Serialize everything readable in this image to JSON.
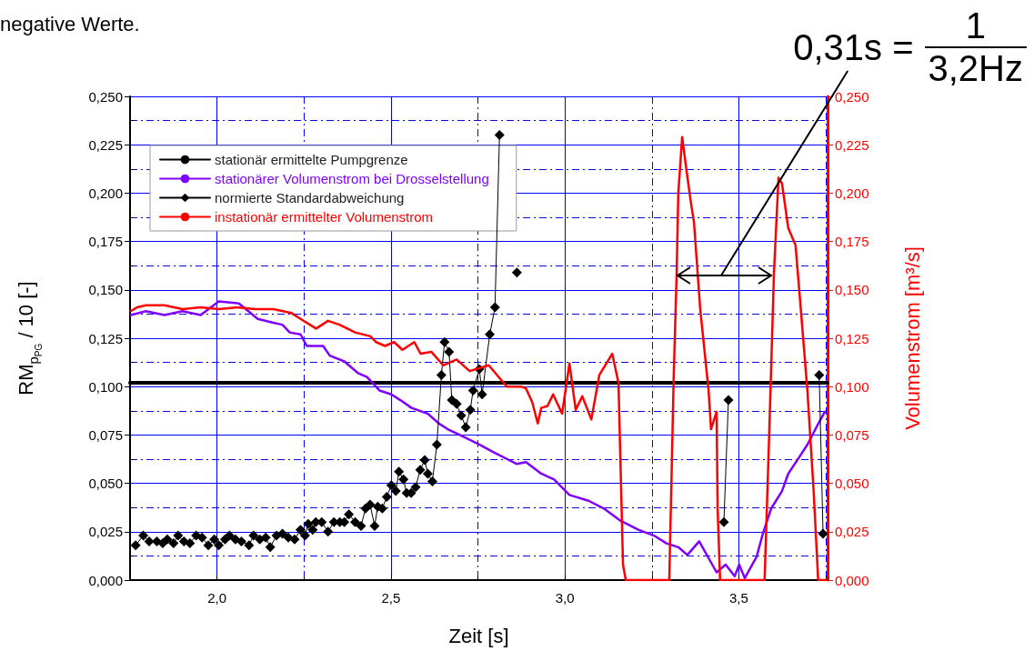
{
  "chart_data": {
    "type": "line",
    "xlabel": "Zeit [s]",
    "ylabel": "RM$_{p}$$_{PG}$ / 10 [-]",
    "y2label": "Volumenstrom [m³/s]",
    "annotations": [
      "negative Werte.",
      "0,31s =",
      "1",
      "3,2Hz"
    ],
    "xlim": [
      1.75,
      3.755
    ],
    "xticks": [
      {
        "value": 2,
        "label": "2,0"
      },
      {
        "value": 2.25,
        "label": null
      },
      {
        "value": 2.5,
        "label": "2,5"
      },
      {
        "value": 2.75,
        "label": null
      },
      {
        "value": 3,
        "label": "3,0"
      },
      {
        "value": 3.25,
        "label": null
      },
      {
        "value": 3.5,
        "label": "3,5"
      },
      {
        "value": 3.75,
        "label": null
      }
    ],
    "ylim": [
      0,
      0.25
    ],
    "yticks": [
      {
        "value": 0,
        "label": "0,000"
      },
      {
        "value": 0.0125,
        "label": null
      },
      {
        "value": 0.025,
        "label": "0,025"
      },
      {
        "value": 0.0375,
        "label": null
      },
      {
        "value": 0.05,
        "label": "0,050"
      },
      {
        "value": 0.0625,
        "label": null
      },
      {
        "value": 0.075,
        "label": "0,075"
      },
      {
        "value": 0.0875,
        "label": null
      },
      {
        "value": 0.1,
        "label": "0,100"
      },
      {
        "value": 0.1125,
        "label": null
      },
      {
        "value": 0.125,
        "label": "0,125"
      },
      {
        "value": 0.1375,
        "label": null
      },
      {
        "value": 0.15,
        "label": "0,150"
      },
      {
        "value": 0.1625,
        "label": null
      },
      {
        "value": 0.175,
        "label": "0,175"
      },
      {
        "value": 0.1875,
        "label": null
      },
      {
        "value": 0.2,
        "label": "0,200"
      },
      {
        "value": 0.2125,
        "label": null
      },
      {
        "value": 0.225,
        "label": "0,225"
      },
      {
        "value": 0.2375,
        "label": null
      },
      {
        "value": 0.25,
        "label": "0,250"
      }
    ],
    "y2lim": [
      0,
      0.25
    ],
    "y2ticks": [
      {
        "value": 0,
        "label": "0,000"
      },
      {
        "value": 0.025,
        "label": "0,025"
      },
      {
        "value": 0.05,
        "label": "0,050"
      },
      {
        "value": 0.075,
        "label": "0,075"
      },
      {
        "value": 0.1,
        "label": "0,100"
      },
      {
        "value": 0.125,
        "label": "0,125"
      },
      {
        "value": 0.15,
        "label": "0,150"
      },
      {
        "value": 0.175,
        "label": "0,175"
      },
      {
        "value": 0.2,
        "label": "0,200"
      },
      {
        "value": 0.225,
        "label": "0,225"
      },
      {
        "value": 0.25,
        "label": "0,250"
      }
    ],
    "grid": true,
    "legend": "top left",
    "line_style": "solid",
    "series": [
      {
        "name": "stationär ermittelte Pumpgrenze",
        "color": "#000000",
        "marker": "none",
        "x": [
          1.75,
          3.755
        ],
        "values": [
          0.102,
          0.102
        ]
      },
      {
        "name": "stationärer Volumenstrom bei Drosselstellung",
        "color": "#8000ff",
        "marker": "none",
        "x": [
          1.752,
          1.796,
          1.849,
          1.901,
          1.953,
          2.005,
          2.063,
          2.117,
          2.162,
          2.188,
          2.209,
          2.24,
          2.258,
          2.305,
          2.324,
          2.366,
          2.405,
          2.431,
          2.467,
          2.501,
          2.527,
          2.559,
          2.606,
          2.637,
          2.663,
          2.71,
          2.755,
          2.796,
          2.862,
          2.888,
          2.932,
          2.969,
          3.013,
          3.068,
          3.112,
          3.157,
          3.211,
          3.256,
          3.292,
          3.326,
          3.352,
          3.386,
          3.436,
          3.462,
          3.488,
          3.501,
          3.517,
          3.551,
          3.569,
          3.593,
          3.624,
          3.642,
          3.679,
          3.697,
          3.723,
          3.747
        ],
        "values": [
          0.137,
          0.139,
          0.137,
          0.139,
          0.137,
          0.144,
          0.143,
          0.135,
          0.133,
          0.132,
          0.128,
          0.127,
          0.121,
          0.121,
          0.116,
          0.113,
          0.107,
          0.105,
          0.098,
          0.096,
          0.093,
          0.089,
          0.086,
          0.081,
          0.078,
          0.074,
          0.07,
          0.066,
          0.06,
          0.061,
          0.055,
          0.052,
          0.044,
          0.041,
          0.037,
          0.031,
          0.026,
          0.023,
          0.019,
          0.017,
          0.013,
          0.02,
          0.004,
          0.008,
          0.002,
          0.008,
          0.001,
          0.012,
          0.024,
          0.037,
          0.046,
          0.055,
          0.065,
          0.07,
          0.079,
          0.087
        ]
      },
      {
        "name": "normierte Standardabweichung",
        "color": "#000000",
        "marker": "diamond",
        "x": [
          1.766,
          1.788,
          1.805,
          1.827,
          1.844,
          1.857,
          1.875,
          1.888,
          1.905,
          1.922,
          1.94,
          1.957,
          1.975,
          1.992,
          2.005,
          2.023,
          2.036,
          2.053,
          2.07,
          2.092,
          2.105,
          2.123,
          2.14,
          2.153,
          2.171,
          2.188,
          2.205,
          2.223,
          2.24,
          2.253,
          2.262,
          2.275,
          2.284,
          2.301,
          2.319,
          2.336,
          2.353,
          2.366,
          2.379,
          2.397,
          2.414,
          2.427,
          2.44,
          2.453,
          2.462,
          2.475,
          2.488,
          2.501,
          2.514,
          2.523,
          2.536,
          2.545,
          2.558,
          2.571,
          2.584,
          2.597,
          2.606,
          2.619,
          2.632,
          2.645,
          2.654,
          2.667,
          2.675,
          2.689,
          2.702,
          2.715,
          2.728,
          2.736,
          2.754,
          2.762,
          2.784,
          2.799,
          2.812,
          2.837,
          2.862,
          2.9,
          3.457,
          3.47,
          3.6,
          3.731,
          3.742
        ],
        "values": [
          0.018,
          0.023,
          0.02,
          0.02,
          0.019,
          0.021,
          0.019,
          0.023,
          0.02,
          0.019,
          0.023,
          0.022,
          0.018,
          0.021,
          0.018,
          0.021,
          0.023,
          0.021,
          0.02,
          0.018,
          0.023,
          0.021,
          0.022,
          0.017,
          0.023,
          0.024,
          0.022,
          0.021,
          0.026,
          0.023,
          0.029,
          0.026,
          0.03,
          0.03,
          0.025,
          0.03,
          0.03,
          0.03,
          0.034,
          0.03,
          0.028,
          0.037,
          0.039,
          0.028,
          0.038,
          0.037,
          0.043,
          0.049,
          0.046,
          0.056,
          0.052,
          0.045,
          0.045,
          0.048,
          0.057,
          0.062,
          0.055,
          0.051,
          0.07,
          0.106,
          0.123,
          0.118,
          0.093,
          0.091,
          0.085,
          0.079,
          0.088,
          0.098,
          0.109,
          0.096,
          0.127,
          0.141,
          0.23,
          null,
          0.159,
          null,
          0.03,
          0.093,
          null,
          0.106,
          0.024
        ]
      },
      {
        "name": "instationär ermittelter Volumenstrom",
        "color": "#ff0000",
        "marker": "none",
        "axis": "y2",
        "x": [
          1.752,
          1.77,
          1.796,
          1.849,
          1.901,
          1.953,
          2.005,
          2.057,
          2.11,
          2.162,
          2.214,
          2.24,
          2.285,
          2.319,
          2.352,
          2.397,
          2.441,
          2.457,
          2.483,
          2.509,
          2.533,
          2.567,
          2.585,
          2.616,
          2.65,
          2.689,
          2.726,
          2.781,
          2.833,
          2.875,
          2.888,
          2.906,
          2.922,
          2.932,
          2.95,
          2.966,
          2.992,
          3.013,
          3.031,
          3.05,
          3.076,
          3.099,
          3.136,
          3.154,
          3.167,
          3.175,
          3.3,
          3.313,
          3.321,
          3.326,
          3.337,
          3.35,
          3.363,
          3.371,
          3.389,
          3.413,
          3.42,
          3.436,
          3.439,
          3.446,
          3.574,
          3.587,
          3.601,
          3.614,
          3.624,
          3.642,
          3.663,
          3.679,
          3.697,
          3.715,
          3.728,
          3.752
        ],
        "values": [
          0.139,
          0.141,
          0.142,
          0.142,
          0.14,
          0.141,
          0.14,
          0.141,
          0.14,
          0.14,
          0.138,
          0.135,
          0.13,
          0.134,
          0.132,
          0.128,
          0.126,
          0.123,
          0.121,
          0.123,
          0.119,
          0.123,
          0.117,
          0.118,
          0.111,
          0.114,
          0.108,
          0.111,
          0.1,
          0.1,
          0.099,
          0.092,
          0.081,
          0.089,
          0.09,
          0.096,
          0.086,
          0.112,
          0.088,
          0.095,
          0.083,
          0.106,
          0.117,
          0.102,
          0.008,
          0,
          0,
          0.107,
          0.157,
          0.2,
          0.229,
          0.211,
          0.194,
          0.185,
          0.14,
          0.098,
          0.078,
          0.087,
          0.037,
          0,
          0,
          0.074,
          0.159,
          0.208,
          0.205,
          0.182,
          0.173,
          0.138,
          0.098,
          0.046,
          0,
          0
        ]
      }
    ]
  }
}
